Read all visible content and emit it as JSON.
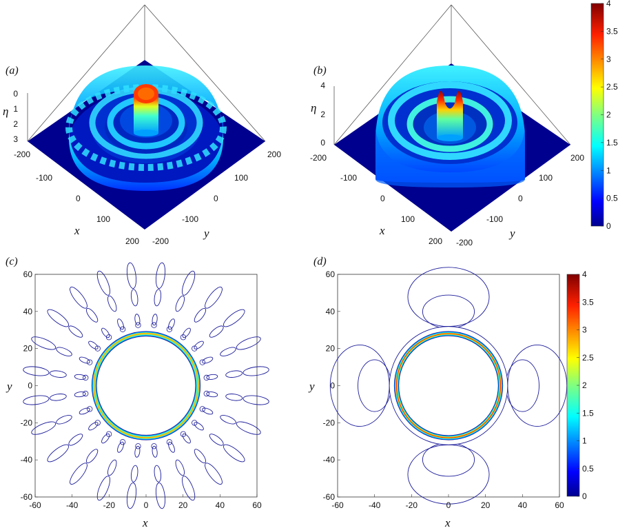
{
  "chart_data": [
    {
      "panel": "(a)",
      "type": "surface",
      "xlabel": "x",
      "ylabel": "y",
      "zlabel": "η",
      "xticks": [
        "-200",
        "-100",
        "0",
        "100",
        "200"
      ],
      "yticks": [
        "-200",
        "-100",
        "0",
        "100",
        "200"
      ],
      "zticks": [
        "0",
        "1",
        "2",
        "3"
      ],
      "xlim": [
        -200,
        200
      ],
      "ylim": [
        -200,
        200
      ],
      "zlim": [
        0,
        3
      ],
      "colormap": "jet",
      "rings": [
        {
          "radius": 0,
          "height": 3.0
        },
        {
          "radius": 55,
          "height": 1.2
        },
        {
          "radius": 95,
          "height": 0.9
        },
        {
          "radius": 135,
          "height": 0.75
        }
      ]
    },
    {
      "panel": "(b)",
      "type": "surface",
      "xlabel": "x",
      "ylabel": "y",
      "zlabel": "η",
      "xticks": [
        "-200",
        "-100",
        "0",
        "100",
        "200"
      ],
      "yticks": [
        "-200",
        "-100",
        "0",
        "100",
        "200"
      ],
      "zticks": [
        "0",
        "2",
        "4"
      ],
      "xlim": [
        -200,
        200
      ],
      "ylim": [
        -200,
        200
      ],
      "zlim": [
        0,
        4
      ],
      "colormap": "jet",
      "colorbar": {
        "min": 0,
        "max": 4,
        "ticks": [
          "0",
          "0.5",
          "1",
          "1.5",
          "2",
          "2.5",
          "3",
          "3.5",
          "4"
        ]
      },
      "rings": [
        {
          "radius": 0,
          "height": 4.0
        },
        {
          "radius": 55,
          "height": 1.3
        },
        {
          "radius": 95,
          "height": 1.1
        },
        {
          "radius": 135,
          "height": 0.8
        }
      ]
    },
    {
      "panel": "(c)",
      "type": "contour",
      "xlabel": "x",
      "ylabel": "y",
      "xticks": [
        "-60",
        "-40",
        "-20",
        "0",
        "20",
        "40",
        "60"
      ],
      "yticks": [
        "-60",
        "-40",
        "-20",
        "0",
        "20",
        "40",
        "60"
      ],
      "xlim": [
        -60,
        60
      ],
      "ylim": [
        -60,
        60
      ],
      "ring_radius": 28,
      "max_level": 4,
      "spokes": 24
    },
    {
      "panel": "(d)",
      "type": "contour",
      "xlabel": "x",
      "ylabel": "y",
      "xticks": [
        "-60",
        "-40",
        "-20",
        "0",
        "20",
        "40",
        "60"
      ],
      "yticks": [
        "-60",
        "-40",
        "-20",
        "0",
        "20",
        "40",
        "60"
      ],
      "xlim": [
        -60,
        60
      ],
      "ylim": [
        -60,
        60
      ],
      "ring_radius": 28,
      "max_level": 4,
      "lobes": 4,
      "colorbar": {
        "min": 0,
        "max": 4,
        "ticks": [
          "0",
          "0.5",
          "1",
          "1.5",
          "2",
          "2.5",
          "3",
          "3.5",
          "4"
        ]
      }
    }
  ],
  "colors": {
    "floor": "#00008f",
    "contour_outer": "#1a1a9a",
    "jet": [
      "#00008f",
      "#0000ff",
      "#0080ff",
      "#00ffff",
      "#80ff80",
      "#ffff00",
      "#ff8000",
      "#ff0000",
      "#800000"
    ]
  }
}
